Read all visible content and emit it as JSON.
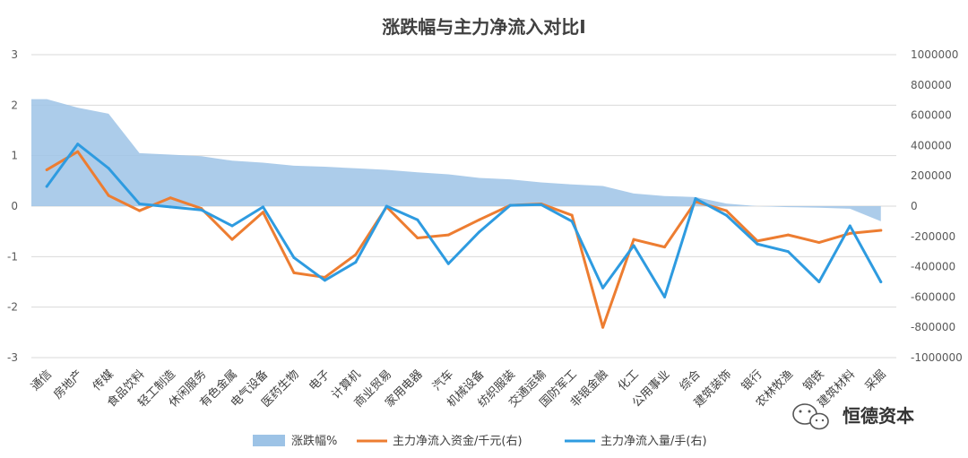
{
  "chart_data": {
    "type": "area+line",
    "title": "涨跌幅与主力净流入对比I",
    "categories": [
      "通信",
      "房地产",
      "传媒",
      "食品饮料",
      "轻工制造",
      "休闲服务",
      "有色金属",
      "电气设备",
      "医药生物",
      "电子",
      "计算机",
      "商业贸易",
      "家用电器",
      "汽车",
      "机械设备",
      "纺织服装",
      "交通运输",
      "国防军工",
      "非银金融",
      "化工",
      "公用事业",
      "综合",
      "建筑装饰",
      "银行",
      "农林牧渔",
      "钢铁",
      "建筑材料",
      "采掘"
    ],
    "y_left": {
      "range": [
        -3,
        3
      ],
      "ticks": [
        3,
        2,
        1,
        0,
        -1,
        -2,
        -3
      ]
    },
    "y_right": {
      "range": [
        -1000000,
        1000000
      ],
      "ticks": [
        1000000,
        800000,
        600000,
        400000,
        200000,
        0,
        -200000,
        -400000,
        -600000,
        -800000,
        -1000000
      ]
    },
    "series": [
      {
        "name": "涨跌幅%",
        "type": "area",
        "axis": "left",
        "color": "#9dc3e6",
        "values": [
          2.12,
          1.95,
          1.83,
          1.05,
          1.02,
          0.99,
          0.9,
          0.86,
          0.8,
          0.78,
          0.75,
          0.72,
          0.67,
          0.63,
          0.56,
          0.53,
          0.47,
          0.43,
          0.4,
          0.25,
          0.2,
          0.18,
          0.05,
          0.0,
          -0.02,
          -0.03,
          -0.05,
          -0.3
        ]
      },
      {
        "name": "主力净流入资金/千元(右)",
        "type": "line",
        "axis": "right",
        "color": "#ed7d31",
        "values": [
          240000,
          360000,
          70000,
          -30000,
          55000,
          -15000,
          -220000,
          -40000,
          -440000,
          -470000,
          -320000,
          -5000,
          -210000,
          -190000,
          -90000,
          5000,
          15000,
          -60000,
          -800000,
          -220000,
          -270000,
          30000,
          -30000,
          -230000,
          -190000,
          -240000,
          -180000,
          -160000
        ]
      },
      {
        "name": "主力净流入量/手(右)",
        "type": "line",
        "axis": "right",
        "color": "#2e9be0",
        "values": [
          130000,
          410000,
          250000,
          15000,
          -5000,
          -25000,
          -130000,
          -5000,
          -340000,
          -490000,
          -370000,
          0,
          -90000,
          -380000,
          -170000,
          5000,
          10000,
          -100000,
          -540000,
          -260000,
          -600000,
          50000,
          -60000,
          -250000,
          -300000,
          -500000,
          -130000,
          -500000
        ]
      }
    ],
    "legend_position": "bottom"
  },
  "watermark": {
    "text": "恒德资本"
  },
  "colors": {
    "area": "#9dc3e6",
    "capital_line": "#ed7d31",
    "volume_line": "#2e9be0",
    "grid": "#d9d9d9"
  }
}
